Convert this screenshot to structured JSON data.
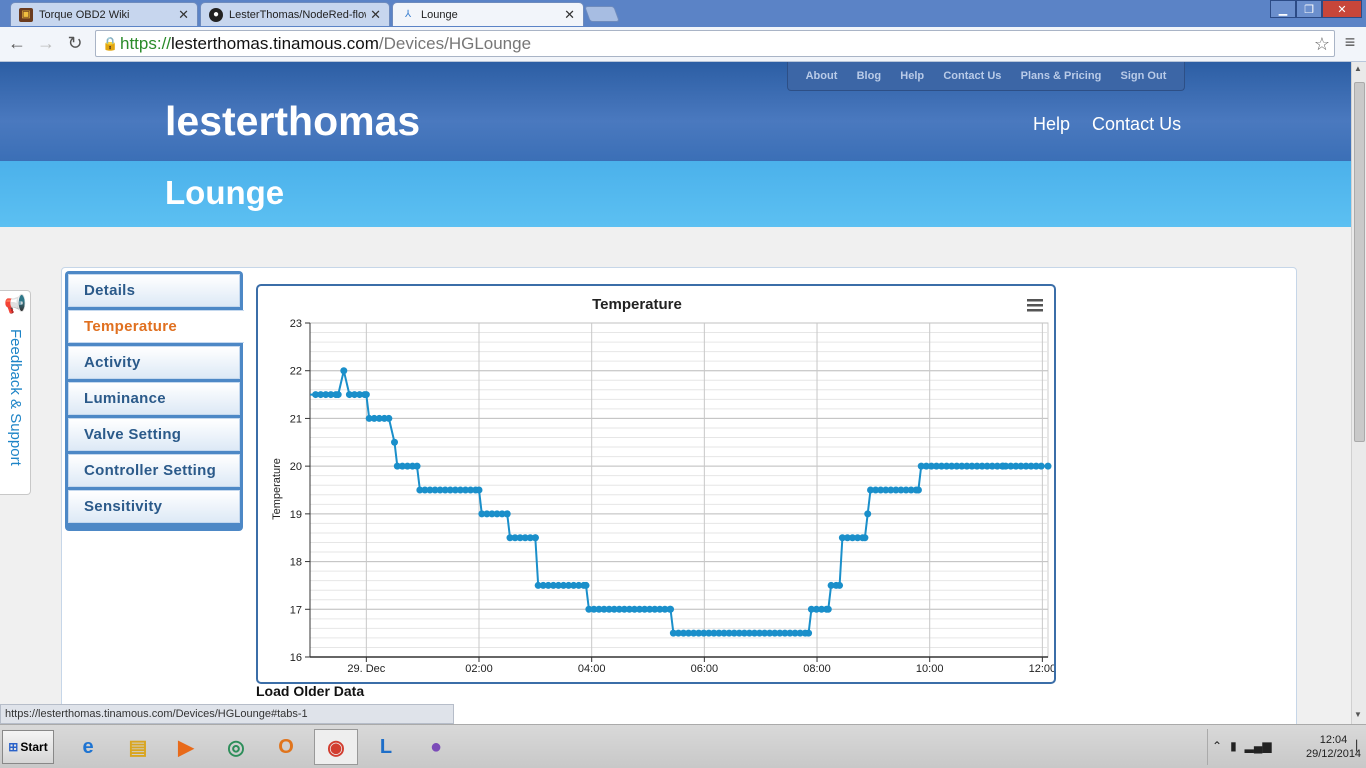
{
  "browser": {
    "tabs": [
      {
        "title": "Torque OBD2 Wiki",
        "icon": "torque-icon",
        "close": "✕"
      },
      {
        "title": "LesterThomas/NodeRed-flow",
        "icon": "github-icon",
        "close": "✕"
      },
      {
        "title": "Lounge",
        "icon": "nodes-icon",
        "close": "✕"
      }
    ],
    "url_scheme": "https://",
    "url_host": "lesterthomas.tinamous.com",
    "url_path": "/Devices/HGLounge"
  },
  "site": {
    "topnav": [
      "About",
      "Blog",
      "Help",
      "Contact Us",
      "Plans & Pricing",
      "Sign Out"
    ],
    "title": "lesterthomas",
    "mainnav": [
      "Help",
      "Contact Us"
    ],
    "page_title": "Lounge",
    "feedback": "Feedback & Support"
  },
  "sidebar": {
    "tabs": [
      "Details",
      "Temperature",
      "Activity",
      "Luminance",
      "Valve Setting",
      "Controller Setting",
      "Sensitivity"
    ],
    "active": "Temperature"
  },
  "load_older": "Load Older Data",
  "status_url": "https://lesterthomas.tinamous.com/Devices/HGLounge#tabs-1",
  "taskbar": {
    "start": "Start",
    "time": "12:04",
    "date": "29/12/2014"
  },
  "chart_data": {
    "type": "line",
    "title": "Temperature",
    "ylabel": "Temperature",
    "xlabel": "",
    "ylim": [
      16,
      23
    ],
    "yticks": [
      16,
      17,
      18,
      19,
      20,
      21,
      22,
      23
    ],
    "xlim": [
      -1.0,
      12.1
    ],
    "xticks": [
      {
        "value": 0,
        "label": "29. Dec"
      },
      {
        "value": 2,
        "label": "02:00"
      },
      {
        "value": 4,
        "label": "04:00"
      },
      {
        "value": 6,
        "label": "06:00"
      },
      {
        "value": 8,
        "label": "08:00"
      },
      {
        "value": 10,
        "label": "10:00"
      },
      {
        "value": 12,
        "label": "12:00"
      }
    ],
    "color": "#1a8fca",
    "grid": true,
    "series": [
      {
        "points": [
          [
            -1.8,
            21.5
          ],
          [
            -0.5,
            21.5
          ],
          [
            -0.4,
            22.0
          ],
          [
            -0.3,
            21.5
          ],
          [
            0.0,
            21.5
          ],
          [
            0.05,
            21.0
          ],
          [
            0.4,
            21.0
          ],
          [
            0.5,
            20.5
          ],
          [
            0.55,
            20.0
          ],
          [
            0.9,
            20.0
          ],
          [
            0.95,
            19.5
          ],
          [
            2.0,
            19.5
          ],
          [
            2.05,
            19.0
          ],
          [
            2.5,
            19.0
          ],
          [
            2.55,
            18.5
          ],
          [
            3.0,
            18.5
          ],
          [
            3.05,
            17.5
          ],
          [
            3.9,
            17.5
          ],
          [
            3.95,
            17.0
          ],
          [
            5.4,
            17.0
          ],
          [
            5.45,
            16.5
          ],
          [
            7.85,
            16.5
          ],
          [
            7.9,
            17.0
          ],
          [
            8.2,
            17.0
          ],
          [
            8.25,
            17.5
          ],
          [
            8.4,
            17.5
          ],
          [
            8.45,
            18.5
          ],
          [
            8.85,
            18.5
          ],
          [
            8.9,
            19.0
          ],
          [
            8.95,
            19.5
          ],
          [
            9.8,
            19.5
          ],
          [
            9.85,
            20.0
          ],
          [
            11.3,
            20.0
          ],
          [
            11.35,
            20.0
          ],
          [
            12.1,
            20.0
          ]
        ]
      }
    ]
  }
}
